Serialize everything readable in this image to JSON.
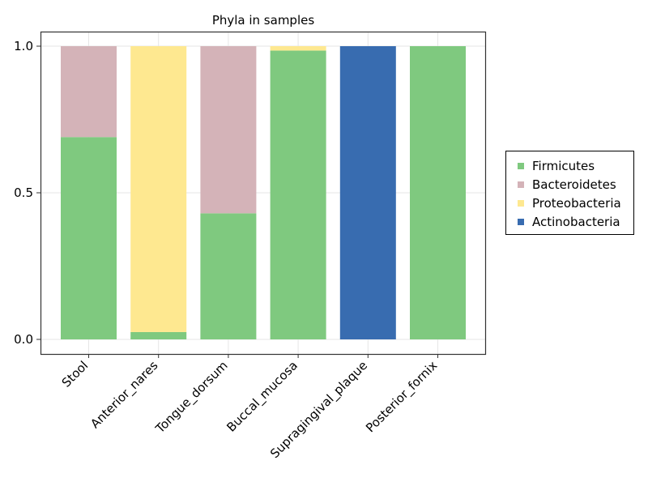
{
  "chart_data": {
    "type": "bar",
    "stacked": true,
    "title": "Phyla in samples",
    "xlabel": "",
    "ylabel": "",
    "ylim": [
      0,
      1.0
    ],
    "yticks": [
      "0.0",
      "0.5",
      "1.0"
    ],
    "grid": true,
    "legend_position": "right",
    "categories": [
      "Stool",
      "Anterior_nares",
      "Tongue_dorsum",
      "Buccal_mucosa",
      "Supragingival_plaque",
      "Posterior_fornix"
    ],
    "series": [
      {
        "name": "Firmicutes",
        "color": "#7fc97f",
        "values": [
          0.69,
          0.025,
          0.43,
          0.985,
          0.0,
          1.0
        ]
      },
      {
        "name": "Bacteroidetes",
        "color": "#d4b3b8",
        "values": [
          0.31,
          0.0,
          0.57,
          0.0,
          0.0,
          0.0
        ]
      },
      {
        "name": "Proteobacteria",
        "color": "#fee890",
        "values": [
          0.0,
          0.975,
          0.0,
          0.015,
          0.0,
          0.0
        ]
      },
      {
        "name": "Actinobacteria",
        "color": "#386cb0",
        "values": [
          0.0,
          0.0,
          0.0,
          0.0,
          1.0,
          0.0
        ]
      }
    ]
  }
}
